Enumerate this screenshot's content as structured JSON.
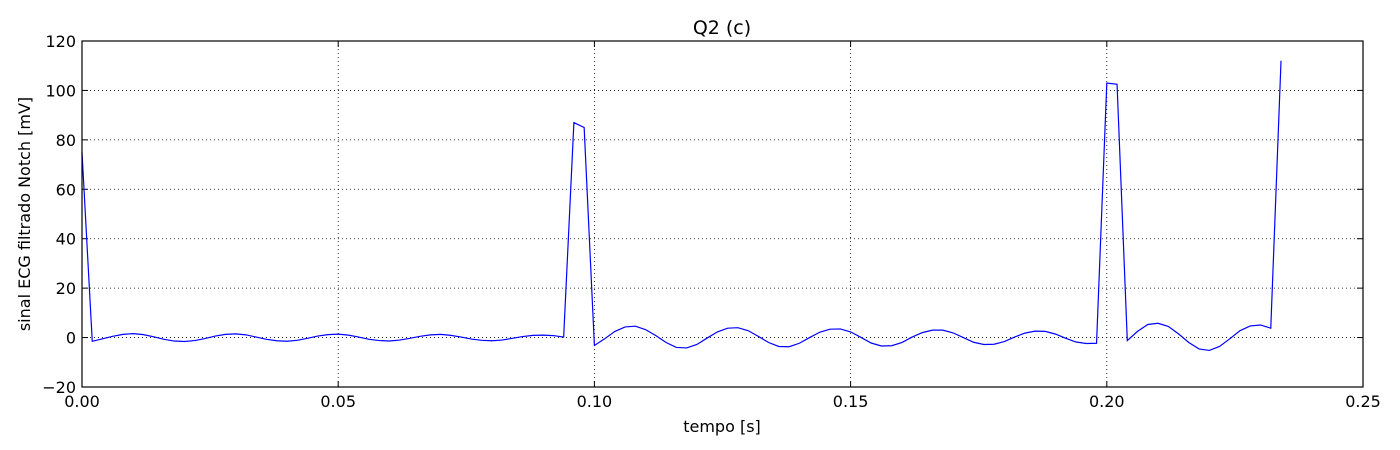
{
  "chart_data": {
    "type": "line",
    "title": "Q2 (c)",
    "xlabel": "tempo [s]",
    "ylabel": "sinal ECG filtrado Notch [mV]",
    "xlim": [
      0.0,
      0.25
    ],
    "ylim": [
      -20,
      120
    ],
    "grid": true,
    "xticks": [
      0.0,
      0.05,
      0.1,
      0.15,
      0.2,
      0.25
    ],
    "xtick_labels": [
      "0.00",
      "0.05",
      "0.10",
      "0.15",
      "0.20",
      "0.25"
    ],
    "yticks": [
      -20,
      0,
      20,
      40,
      60,
      80,
      100,
      120
    ],
    "ytick_labels": [
      "−20",
      "0",
      "20",
      "40",
      "60",
      "80",
      "100",
      "120"
    ],
    "line_color": "#0000ff",
    "x": [
      0.0,
      0.002,
      0.004,
      0.006,
      0.008,
      0.01,
      0.012,
      0.014,
      0.016,
      0.018,
      0.02,
      0.022,
      0.024,
      0.026,
      0.028,
      0.03,
      0.032,
      0.034,
      0.036,
      0.038,
      0.04,
      0.042,
      0.044,
      0.046,
      0.048,
      0.05,
      0.052,
      0.054,
      0.056,
      0.058,
      0.06,
      0.062,
      0.064,
      0.066,
      0.068,
      0.07,
      0.072,
      0.074,
      0.076,
      0.078,
      0.08,
      0.082,
      0.084,
      0.086,
      0.088,
      0.09,
      0.092,
      0.094,
      0.096,
      0.098,
      0.1,
      0.102,
      0.104,
      0.106,
      0.108,
      0.11,
      0.112,
      0.114,
      0.116,
      0.118,
      0.12,
      0.122,
      0.124,
      0.126,
      0.128,
      0.13,
      0.132,
      0.134,
      0.136,
      0.138,
      0.14,
      0.142,
      0.144,
      0.146,
      0.148,
      0.15,
      0.152,
      0.154,
      0.156,
      0.158,
      0.16,
      0.162,
      0.164,
      0.166,
      0.168,
      0.17,
      0.172,
      0.174,
      0.176,
      0.178,
      0.18,
      0.182,
      0.184,
      0.186,
      0.188,
      0.19,
      0.192,
      0.194,
      0.196,
      0.198,
      0.2,
      0.202,
      0.204,
      0.206,
      0.208,
      0.21,
      0.212,
      0.214,
      0.216,
      0.218,
      0.22,
      0.222,
      0.224,
      0.226,
      0.228,
      0.23,
      0.232,
      0.234
    ],
    "y": [
      75,
      -1.5,
      -0.5,
      0.5,
      1.3,
      1.6,
      1.2,
      0.3,
      -0.7,
      -1.4,
      -1.6,
      -1.2,
      -0.4,
      0.6,
      1.3,
      1.5,
      1.1,
      0.2,
      -0.7,
      -1.3,
      -1.5,
      -1.1,
      -0.3,
      0.6,
      1.2,
      1.4,
      1.0,
      0.2,
      -0.7,
      -1.2,
      -1.4,
      -1.0,
      -0.3,
      0.5,
      1.1,
      1.3,
      0.9,
      0.2,
      -0.6,
      -1.1,
      -1.3,
      -1.0,
      -0.3,
      0.4,
      0.9,
      1.0,
      0.8,
      0.2,
      87,
      85,
      -3.2,
      -0.5,
      2.5,
      4.3,
      4.6,
      3.2,
      0.8,
      -2.0,
      -4.0,
      -4.2,
      -2.8,
      -0.2,
      2.3,
      3.8,
      4.0,
      2.8,
      0.5,
      -2.0,
      -3.6,
      -3.7,
      -2.3,
      0.0,
      2.2,
      3.4,
      3.5,
      2.3,
      0.1,
      -2.2,
      -3.4,
      -3.3,
      -2.0,
      0.2,
      2.0,
      3.0,
      3.0,
      1.9,
      0.0,
      -1.9,
      -2.8,
      -2.7,
      -1.6,
      0.2,
      1.8,
      2.6,
      2.5,
      1.4,
      -0.3,
      -1.8,
      -2.4,
      -2.3,
      103,
      102.5,
      -1.2,
      2.5,
      5.3,
      5.8,
      4.5,
      1.5,
      -2.0,
      -4.6,
      -5.2,
      -3.6,
      -0.5,
      2.8,
      4.7,
      5.1,
      3.8,
      112
    ]
  }
}
